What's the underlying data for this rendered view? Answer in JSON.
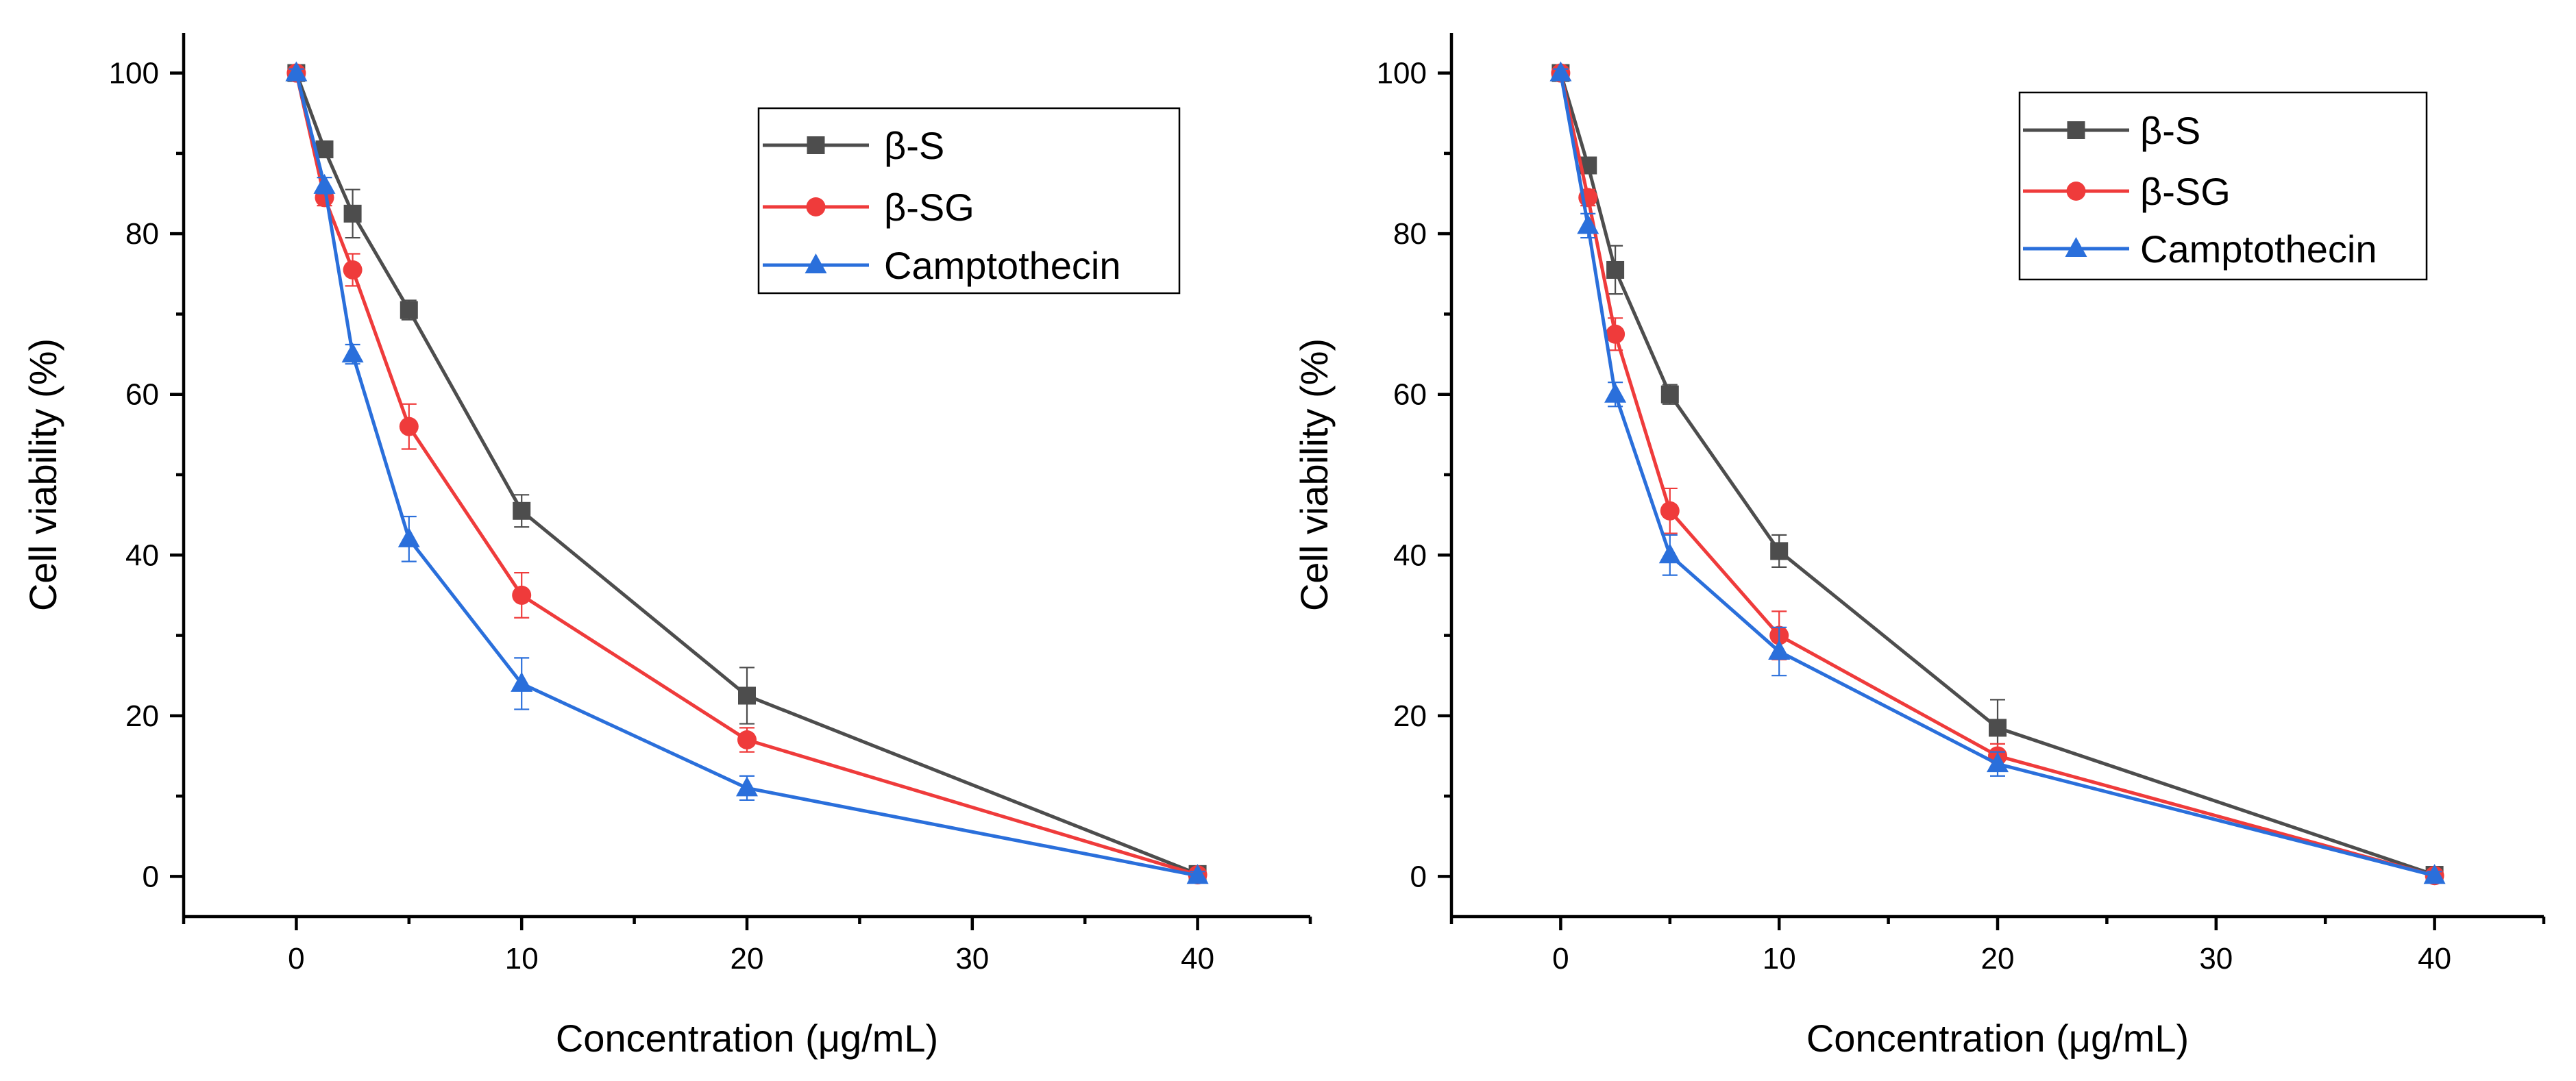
{
  "chart_data": [
    {
      "type": "line",
      "panel": "left",
      "title": "",
      "xlabel": "Concentration (μg/mL)",
      "ylabel": "Cell viability (%)",
      "xlim": [
        -5,
        45
      ],
      "ylim": [
        -5,
        105
      ],
      "xticks": [
        0,
        10,
        20,
        30,
        40
      ],
      "xtick_labels": [
        "0",
        "10",
        "20",
        "30",
        "40"
      ],
      "yticks": [
        0,
        20,
        40,
        60,
        80,
        100
      ],
      "ytick_labels": [
        "0",
        "20",
        "40",
        "60",
        "80",
        "100"
      ],
      "legend_position": "top-right",
      "x": [
        0,
        1.25,
        2.5,
        5,
        10,
        20,
        40
      ],
      "series": [
        {
          "name": "β-S",
          "color": "#4d4d4d",
          "marker": "square",
          "values": [
            100,
            90.5,
            82.5,
            70.5,
            45.5,
            22.5,
            0.3
          ],
          "errors": [
            0.5,
            1.0,
            3.0,
            1.2,
            2.0,
            3.5,
            0.5
          ]
        },
        {
          "name": "β-SG",
          "color": "#ef3b3b",
          "marker": "circle",
          "values": [
            100,
            84.5,
            75.5,
            56,
            35,
            17,
            0.2
          ],
          "errors": [
            0.5,
            1.0,
            2.0,
            2.8,
            2.8,
            1.5,
            0.5
          ]
        },
        {
          "name": "Camptothecin",
          "color": "#2a6fdb",
          "marker": "triangle",
          "values": [
            100,
            86,
            65,
            42,
            24,
            11,
            0.1
          ],
          "errors": [
            0.5,
            1.0,
            1.2,
            2.8,
            3.2,
            1.5,
            0.5
          ]
        }
      ]
    },
    {
      "type": "line",
      "panel": "right",
      "title": "",
      "xlabel": "Concentration (μg/mL)",
      "ylabel": "Cell viability (%)",
      "xlim": [
        -5,
        45
      ],
      "ylim": [
        -5,
        105
      ],
      "xticks": [
        0,
        10,
        20,
        30,
        40
      ],
      "xtick_labels": [
        "0",
        "10",
        "20",
        "30",
        "40"
      ],
      "yticks": [
        0,
        20,
        40,
        60,
        80,
        100
      ],
      "ytick_labels": [
        "0",
        "20",
        "40",
        "60",
        "80",
        "100"
      ],
      "legend_position": "top-right",
      "x": [
        0,
        1.25,
        2.5,
        5,
        10,
        20,
        40
      ],
      "series": [
        {
          "name": "β-S",
          "color": "#4d4d4d",
          "marker": "square",
          "values": [
            100,
            88.5,
            75.5,
            60,
            40.5,
            18.5,
            0.2
          ],
          "errors": [
            0.5,
            1.0,
            3.0,
            1.2,
            2.0,
            3.5,
            0.5
          ]
        },
        {
          "name": "β-SG",
          "color": "#ef3b3b",
          "marker": "circle",
          "values": [
            100,
            84.5,
            67.5,
            45.5,
            30,
            15,
            0.1
          ],
          "errors": [
            0.5,
            1.0,
            2.0,
            2.8,
            3.0,
            1.5,
            0.5
          ]
        },
        {
          "name": "Camptothecin",
          "color": "#2a6fdb",
          "marker": "triangle",
          "values": [
            100,
            81,
            60,
            40,
            28,
            14,
            0.1
          ],
          "errors": [
            0.5,
            1.5,
            1.5,
            2.5,
            3.0,
            1.5,
            0.5
          ]
        }
      ]
    }
  ]
}
